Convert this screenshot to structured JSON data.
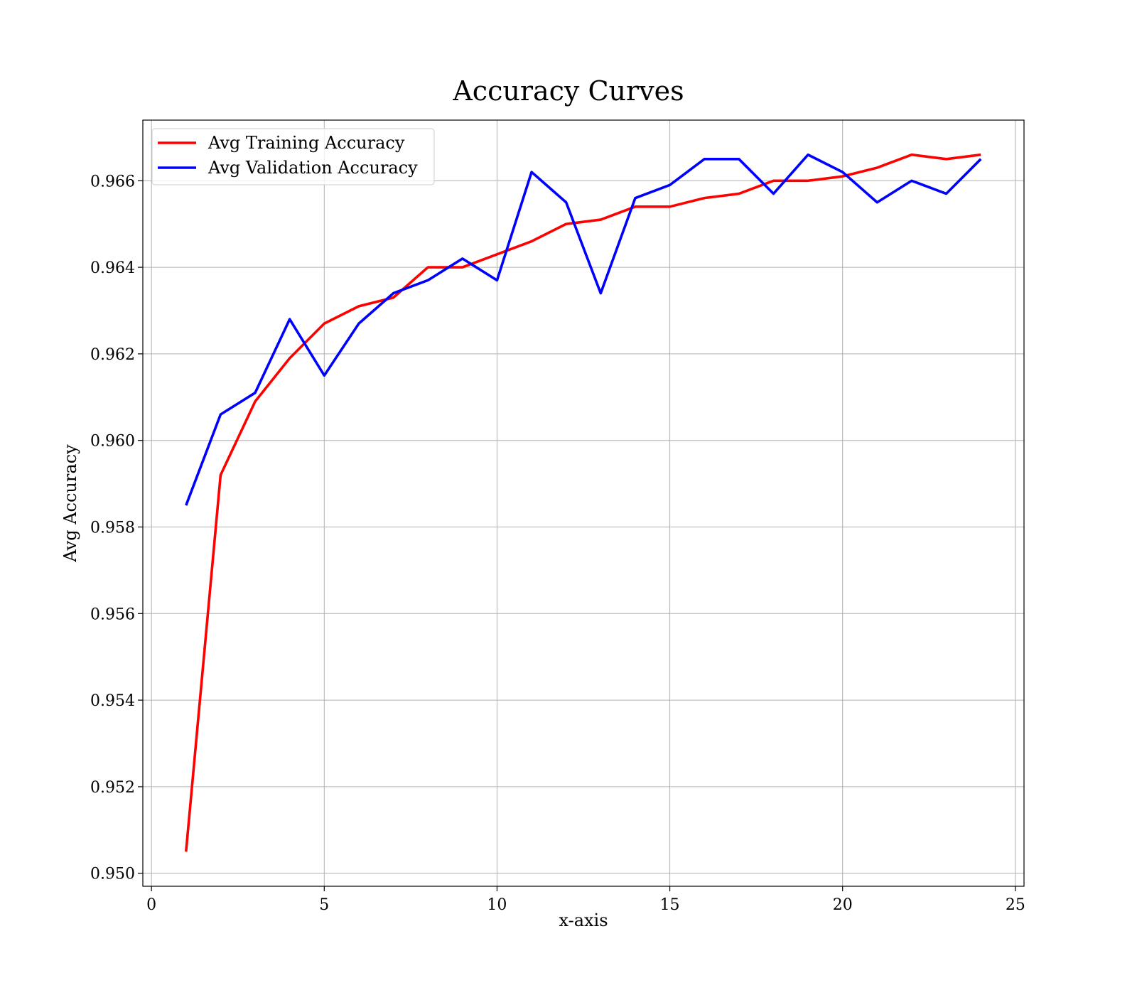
{
  "chart_data": {
    "type": "line",
    "title": "Accuracy Curves",
    "xlabel": "x-axis",
    "ylabel": "Avg Accuracy",
    "xlim": [
      -0.25,
      25.25
    ],
    "ylim": [
      0.9497,
      0.9674
    ],
    "xticks": [
      0,
      5,
      10,
      15,
      20,
      25
    ],
    "yticks": [
      0.95,
      0.952,
      0.954,
      0.956,
      0.958,
      0.96,
      0.962,
      0.964,
      0.966
    ],
    "xtick_labels": [
      "0",
      "5",
      "10",
      "15",
      "20",
      "25"
    ],
    "ytick_labels": [
      "0.950",
      "0.952",
      "0.954",
      "0.956",
      "0.958",
      "0.960",
      "0.962",
      "0.964",
      "0.966"
    ],
    "grid": true,
    "legend_position": "top-left",
    "x": [
      1,
      2,
      3,
      4,
      5,
      6,
      7,
      8,
      9,
      10,
      11,
      12,
      13,
      14,
      15,
      16,
      17,
      18,
      19,
      20,
      21,
      22,
      23,
      24
    ],
    "series": [
      {
        "name": "Avg Training Accuracy",
        "color": "#ff0000",
        "values": [
          0.9505,
          0.9592,
          0.9609,
          0.9619,
          0.9627,
          0.9631,
          0.9633,
          0.964,
          0.964,
          0.9643,
          0.9646,
          0.965,
          0.9651,
          0.9654,
          0.9654,
          0.9656,
          0.9657,
          0.966,
          0.966,
          0.9661,
          0.9663,
          0.9666,
          0.9665,
          0.9666
        ]
      },
      {
        "name": "Avg Validation Accuracy",
        "color": "#0000ff",
        "values": [
          0.9585,
          0.9606,
          0.9611,
          0.9628,
          0.9615,
          0.9627,
          0.9634,
          0.9637,
          0.9642,
          0.9637,
          0.9662,
          0.9655,
          0.9634,
          0.9656,
          0.9659,
          0.9665,
          0.9665,
          0.9657,
          0.9666,
          0.9662,
          0.9655,
          0.966,
          0.9657,
          0.9665
        ]
      }
    ]
  }
}
